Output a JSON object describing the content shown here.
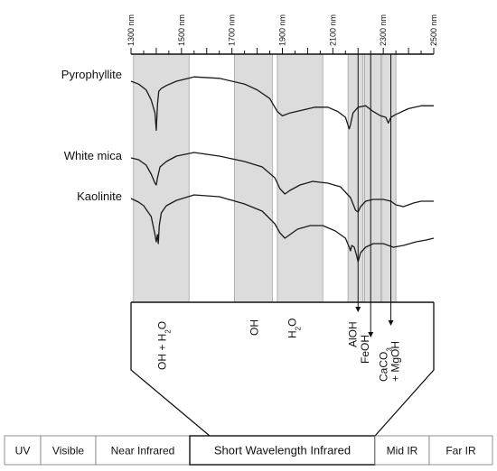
{
  "chart_data": {
    "type": "line",
    "title": "",
    "xlabel": "",
    "ylabel": "",
    "x_unit": "nm",
    "xlim": [
      1300,
      2500
    ],
    "x_ticks": [
      "1300 nm",
      "1500 nm",
      "1700 nm",
      "1900 nm",
      "2100 nm",
      "2300 nm",
      "2500 nm"
    ],
    "absorption_bands": [
      {
        "label": "OH + H2O",
        "range": [
          1310,
          1530
        ]
      },
      {
        "label": "OH",
        "range": [
          1710,
          1860
        ]
      },
      {
        "label": "H2O",
        "range": [
          1880,
          2060
        ]
      },
      {
        "label": "AlOH",
        "range": [
          2160,
          2220
        ]
      },
      {
        "label": "FeOH",
        "range": [
          2225,
          2290
        ]
      },
      {
        "label": "CaCO3 + MgOH",
        "range": [
          2295,
          2350
        ]
      }
    ],
    "feature_markers": [
      {
        "label": "AlOH",
        "x": 2200
      },
      {
        "label": "FeOH",
        "x": 2250
      },
      {
        "label": "CaCO3 + MgOH",
        "x": 2330
      }
    ],
    "series": [
      {
        "name": "Pyrophyllite",
        "x": [
          1300,
          1330,
          1360,
          1380,
          1395,
          1400,
          1405,
          1410,
          1420,
          1440,
          1480,
          1550,
          1650,
          1750,
          1800,
          1850,
          1880,
          1900,
          1930,
          1980,
          2030,
          2080,
          2120,
          2150,
          2165,
          2170,
          2180,
          2200,
          2230,
          2260,
          2290,
          2310,
          2320,
          2330,
          2350,
          2400,
          2450,
          2500
        ],
        "y": [
          0.0,
          0.02,
          0.06,
          0.13,
          0.22,
          0.34,
          0.16,
          0.07,
          0.05,
          0.03,
          0.0,
          -0.03,
          -0.02,
          0.02,
          0.06,
          0.12,
          0.21,
          0.24,
          0.22,
          0.2,
          0.18,
          0.18,
          0.21,
          0.25,
          0.33,
          0.3,
          0.22,
          0.18,
          0.17,
          0.21,
          0.24,
          0.25,
          0.29,
          0.25,
          0.23,
          0.19,
          0.17,
          0.17
        ]
      },
      {
        "name": "White mica",
        "x": [
          1300,
          1330,
          1360,
          1380,
          1395,
          1400,
          1405,
          1415,
          1440,
          1480,
          1550,
          1650,
          1750,
          1820,
          1870,
          1890,
          1910,
          1930,
          1970,
          2020,
          2080,
          2130,
          2170,
          2190,
          2200,
          2210,
          2230,
          2260,
          2300,
          2330,
          2350,
          2380,
          2420,
          2450,
          2500
        ],
        "y": [
          0.0,
          0.01,
          0.04,
          0.09,
          0.14,
          0.15,
          0.11,
          0.05,
          0.02,
          -0.01,
          -0.03,
          -0.01,
          0.02,
          0.05,
          0.11,
          0.17,
          0.2,
          0.18,
          0.15,
          0.13,
          0.14,
          0.16,
          0.22,
          0.29,
          0.3,
          0.27,
          0.24,
          0.23,
          0.23,
          0.24,
          0.26,
          0.27,
          0.25,
          0.24,
          0.24
        ]
      },
      {
        "name": "Kaolinite",
        "x": [
          1300,
          1330,
          1350,
          1380,
          1395,
          1400,
          1405,
          1408,
          1412,
          1420,
          1440,
          1480,
          1550,
          1650,
          1750,
          1820,
          1870,
          1890,
          1910,
          1930,
          1960,
          2010,
          2060,
          2110,
          2150,
          2165,
          2170,
          2175,
          2185,
          2195,
          2200,
          2210,
          2230,
          2260,
          2300,
          2340,
          2380,
          2430,
          2470,
          2500
        ],
        "y": [
          0.0,
          0.02,
          0.04,
          0.1,
          0.2,
          0.24,
          0.2,
          0.25,
          0.15,
          0.08,
          0.04,
          0.01,
          -0.02,
          -0.01,
          0.03,
          0.07,
          0.14,
          0.19,
          0.22,
          0.2,
          0.17,
          0.15,
          0.15,
          0.18,
          0.22,
          0.27,
          0.29,
          0.26,
          0.27,
          0.32,
          0.35,
          0.3,
          0.27,
          0.25,
          0.25,
          0.27,
          0.26,
          0.24,
          0.23,
          0.22
        ]
      }
    ],
    "spectrum_bar": [
      "UV",
      "Visible",
      "Near Infrared",
      "Short Wavelength Infrared",
      "Mid IR",
      "Far IR"
    ],
    "highlighted_region": "Short Wavelength Infrared"
  }
}
